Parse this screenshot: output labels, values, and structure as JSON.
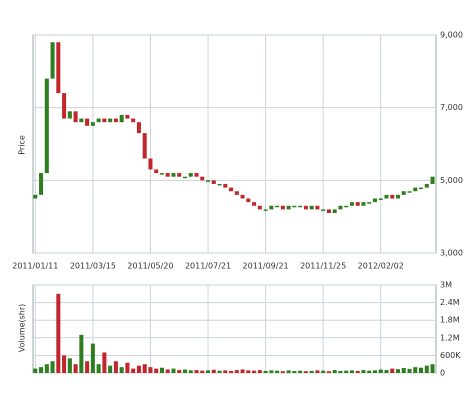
{
  "chart_data": {
    "type": "candlestick",
    "price_axis_label": "Price",
    "volume_axis_label": "Volume(shr)",
    "open": [
      4500,
      4600,
      5200,
      7800,
      8800,
      7400,
      6700,
      6900,
      6600,
      6700,
      6500,
      6600,
      6700,
      6600,
      6700,
      6600,
      6800,
      6700,
      6600,
      6300,
      5600,
      5300,
      5200,
      5200,
      5100,
      5200,
      5100,
      5100,
      5200,
      5100,
      5000,
      5000,
      4900,
      4900,
      4800,
      4700,
      4600,
      4500,
      4400,
      4300,
      4200,
      4200,
      4300,
      4300,
      4200,
      4300,
      4300,
      4300,
      4200,
      4300,
      4200,
      4200,
      4100,
      4200,
      4300,
      4300,
      4400,
      4300,
      4400,
      4400,
      4500,
      4500,
      4600,
      4500,
      4600,
      4700,
      4700,
      4800,
      4800,
      4900
    ],
    "close": [
      4600,
      5200,
      7800,
      8800,
      7400,
      6700,
      6900,
      6600,
      6700,
      6500,
      6600,
      6700,
      6600,
      6700,
      6600,
      6800,
      6700,
      6600,
      6300,
      5600,
      5300,
      5200,
      5200,
      5100,
      5200,
      5100,
      5100,
      5200,
      5100,
      5000,
      5000,
      4900,
      4900,
      4800,
      4700,
      4600,
      4500,
      4400,
      4300,
      4200,
      4200,
      4300,
      4300,
      4200,
      4300,
      4300,
      4300,
      4200,
      4300,
      4200,
      4200,
      4100,
      4200,
      4300,
      4300,
      4400,
      4300,
      4400,
      4400,
      4500,
      4500,
      4600,
      4500,
      4600,
      4700,
      4700,
      4800,
      4800,
      4900,
      5100
    ],
    "volume": [
      150000,
      200000,
      300000,
      400000,
      2700000,
      600000,
      500000,
      300000,
      1300000,
      400000,
      1000000,
      300000,
      700000,
      250000,
      400000,
      200000,
      350000,
      150000,
      250000,
      300000,
      200000,
      150000,
      180000,
      120000,
      150000,
      100000,
      120000,
      90000,
      100000,
      80000,
      90000,
      110000,
      80000,
      90000,
      70000,
      100000,
      120000,
      90000,
      80000,
      100000,
      70000,
      90000,
      80000,
      60000,
      90000,
      70000,
      80000,
      60000,
      70000,
      90000,
      80000,
      60000,
      100000,
      70000,
      80000,
      90000,
      70000,
      100000,
      80000,
      90000,
      120000,
      100000,
      150000,
      130000,
      170000,
      140000,
      200000,
      180000,
      250000,
      300000
    ],
    "xlim": [
      -0.4,
      69.6
    ],
    "xticks": [
      {
        "value": 0,
        "label": "2011/01/11"
      },
      {
        "value": 10,
        "label": "2011/03/15"
      },
      {
        "value": 20,
        "label": "2011/05/20"
      },
      {
        "value": 30,
        "label": "2011/07/21"
      },
      {
        "value": 40,
        "label": "2011/09/21"
      },
      {
        "value": 50,
        "label": "2011/11/25"
      },
      {
        "value": 60,
        "label": "2012/02/02"
      }
    ],
    "ylim": [
      3000,
      9000
    ],
    "yticks": [
      {
        "value": 3000,
        "label": "3,000"
      },
      {
        "value": 5000,
        "label": "5,000"
      },
      {
        "value": 7000,
        "label": "7,000"
      },
      {
        "value": 9000,
        "label": "9,000"
      }
    ],
    "vlim": [
      0,
      3000000
    ],
    "vticks": [
      0,
      {
        "value": 600000,
        "label": "600K"
      },
      {
        "value": 1200000,
        "label": "1.2M"
      },
      {
        "value": 1800000,
        "label": "1.8M"
      },
      {
        "value": 2400000,
        "label": "2.4M"
      },
      {
        "value": 3000000,
        "label": "3M"
      }
    ],
    "up_color": "#2e7d1e",
    "down_color": "#c0262c",
    "grid": true
  }
}
